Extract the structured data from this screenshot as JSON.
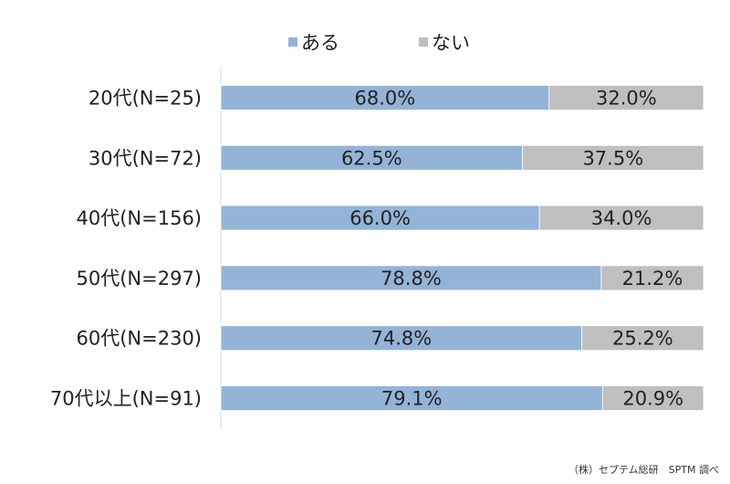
{
  "colors": {
    "aru": "#95b3d7",
    "nai": "#bfbfbf",
    "axis": "#d9d9d9"
  },
  "chart_data": {
    "type": "bar",
    "orientation": "horizontal",
    "stacked": "percent",
    "categories": [
      "20代(N=25)",
      "30代(N=72)",
      "40代(N=156)",
      "50代(N=297)",
      "60代(N=230)",
      "70代以上(N=91)"
    ],
    "series": [
      {
        "name": "ある",
        "color": "#95b3d7",
        "values": [
          68.0,
          62.5,
          66.0,
          78.8,
          74.8,
          79.1
        ],
        "labels": [
          "68.0%",
          "62.5%",
          "66.0%",
          "78.8%",
          "74.8%",
          "79.1%"
        ]
      },
      {
        "name": "ない",
        "color": "#bfbfbf",
        "values": [
          32.0,
          37.5,
          34.0,
          21.2,
          25.2,
          20.9
        ],
        "labels": [
          "32.0%",
          "37.5%",
          "34.0%",
          "21.2%",
          "25.2%",
          "20.9%"
        ]
      }
    ],
    "xlim": [
      0,
      100
    ],
    "legend_position": "top-center",
    "grid": false,
    "title": "",
    "xlabel": "",
    "ylabel": ""
  },
  "source": "（株）セプテム総研　SPTM 調べ"
}
